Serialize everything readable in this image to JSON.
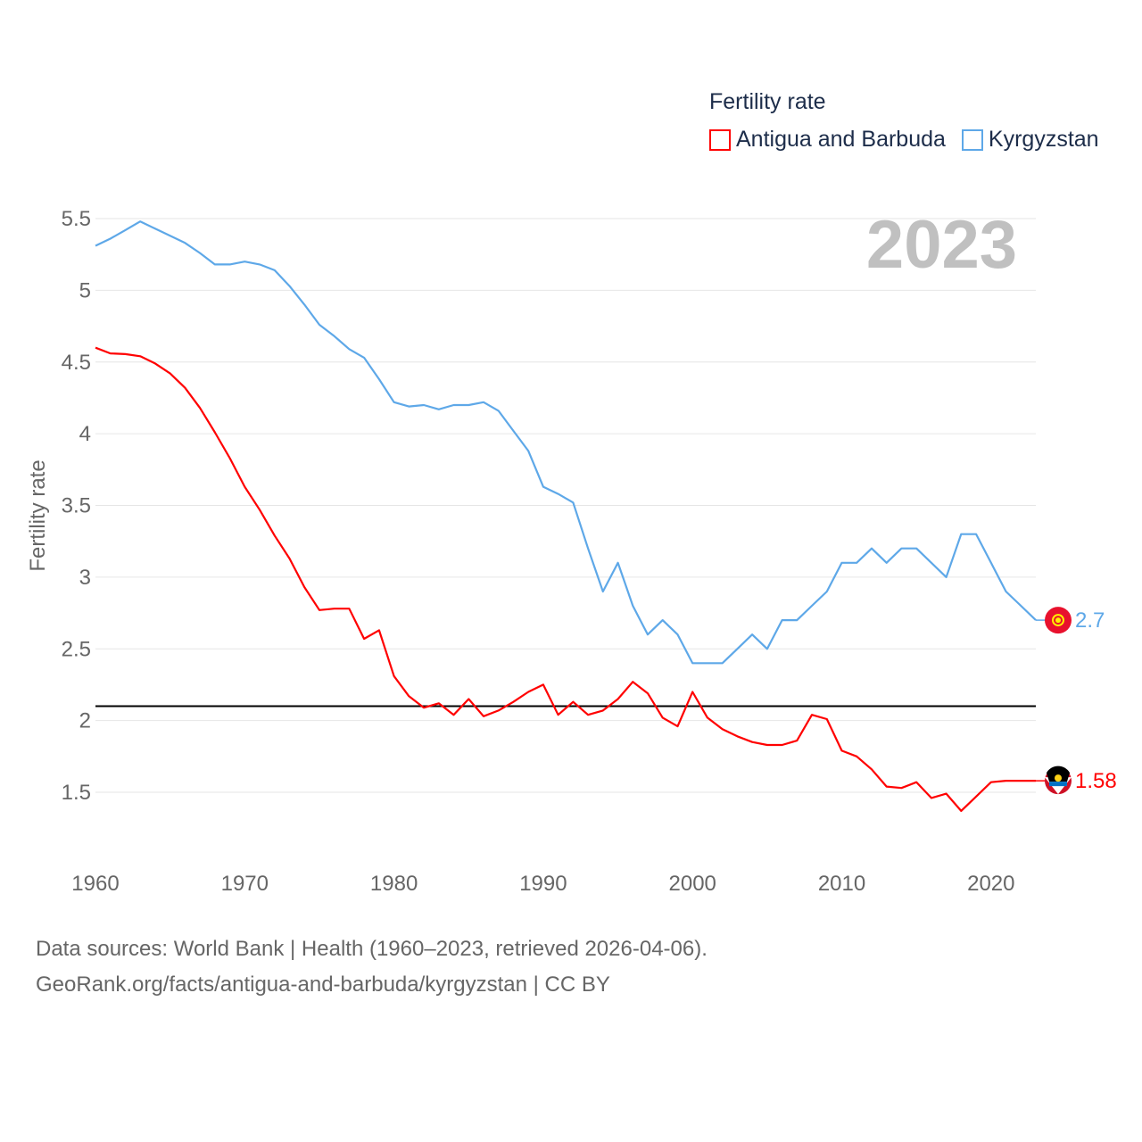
{
  "chart_data": {
    "type": "line",
    "title": "Fertility rate",
    "ylabel": "Fertility rate",
    "xlabel": "",
    "year_label": "2023",
    "xlim": [
      1960,
      2023
    ],
    "ylim": [
      1.1,
      5.65
    ],
    "yticks": [
      1.5,
      2,
      2.5,
      3,
      3.5,
      4,
      4.5,
      5,
      5.5
    ],
    "ytick_labels": [
      "1.5",
      "2",
      "2.5",
      "3",
      "3.5",
      "4",
      "4.5",
      "5",
      "5.5"
    ],
    "xticks": [
      1960,
      1970,
      1980,
      1990,
      2000,
      2010,
      2020
    ],
    "xtick_labels": [
      "1960",
      "1970",
      "1980",
      "1990",
      "2000",
      "2010",
      "2020"
    ],
    "grid": true,
    "legend_position": "top-right",
    "reference_line": 2.1,
    "x_start": 1960,
    "series": [
      {
        "name": "Antigua and Barbuda",
        "color": "#ff0000",
        "end_label": "1.58",
        "values": [
          4.6,
          4.56,
          4.555,
          4.54,
          4.49,
          4.42,
          4.32,
          4.18,
          4.01,
          3.83,
          3.63,
          3.47,
          3.29,
          3.13,
          2.93,
          2.77,
          2.78,
          2.78,
          2.57,
          2.63,
          2.31,
          2.17,
          2.09,
          2.12,
          2.04,
          2.15,
          2.03,
          2.07,
          2.13,
          2.2,
          2.25,
          2.04,
          2.13,
          2.04,
          2.07,
          2.15,
          2.27,
          2.19,
          2.02,
          1.96,
          2.2,
          2.02,
          1.94,
          1.89,
          1.85,
          1.83,
          1.83,
          1.86,
          2.04,
          2.01,
          1.79,
          1.75,
          1.66,
          1.54,
          1.53,
          1.57,
          1.46,
          1.49,
          1.37,
          1.47,
          1.57,
          1.58,
          1.58,
          1.58
        ]
      },
      {
        "name": "Kyrgyzstan",
        "color": "#5ea8e8",
        "end_label": "2.7",
        "values": [
          5.31,
          5.36,
          5.42,
          5.48,
          5.43,
          5.38,
          5.33,
          5.26,
          5.18,
          5.18,
          5.2,
          5.18,
          5.14,
          5.03,
          4.9,
          4.76,
          4.68,
          4.59,
          4.53,
          4.38,
          4.22,
          4.19,
          4.2,
          4.17,
          4.2,
          4.2,
          4.22,
          4.16,
          4.02,
          3.88,
          3.63,
          3.58,
          3.52,
          3.2,
          2.9,
          3.1,
          2.8,
          2.6,
          2.7,
          2.6,
          2.4,
          2.4,
          2.4,
          2.5,
          2.6,
          2.5,
          2.7,
          2.7,
          2.8,
          2.9,
          3.1,
          3.1,
          3.2,
          3.1,
          3.2,
          3.2,
          3.1,
          3.0,
          3.3,
          3.3,
          3.1,
          2.9,
          2.8,
          2.7
        ]
      }
    ]
  },
  "footer": {
    "line1": "Data sources: World Bank | Health (1960–2023, retrieved 2026-04-06).",
    "line2": "GeoRank.org/facts/antigua-and-barbuda/kyrgyzstan | CC BY"
  }
}
